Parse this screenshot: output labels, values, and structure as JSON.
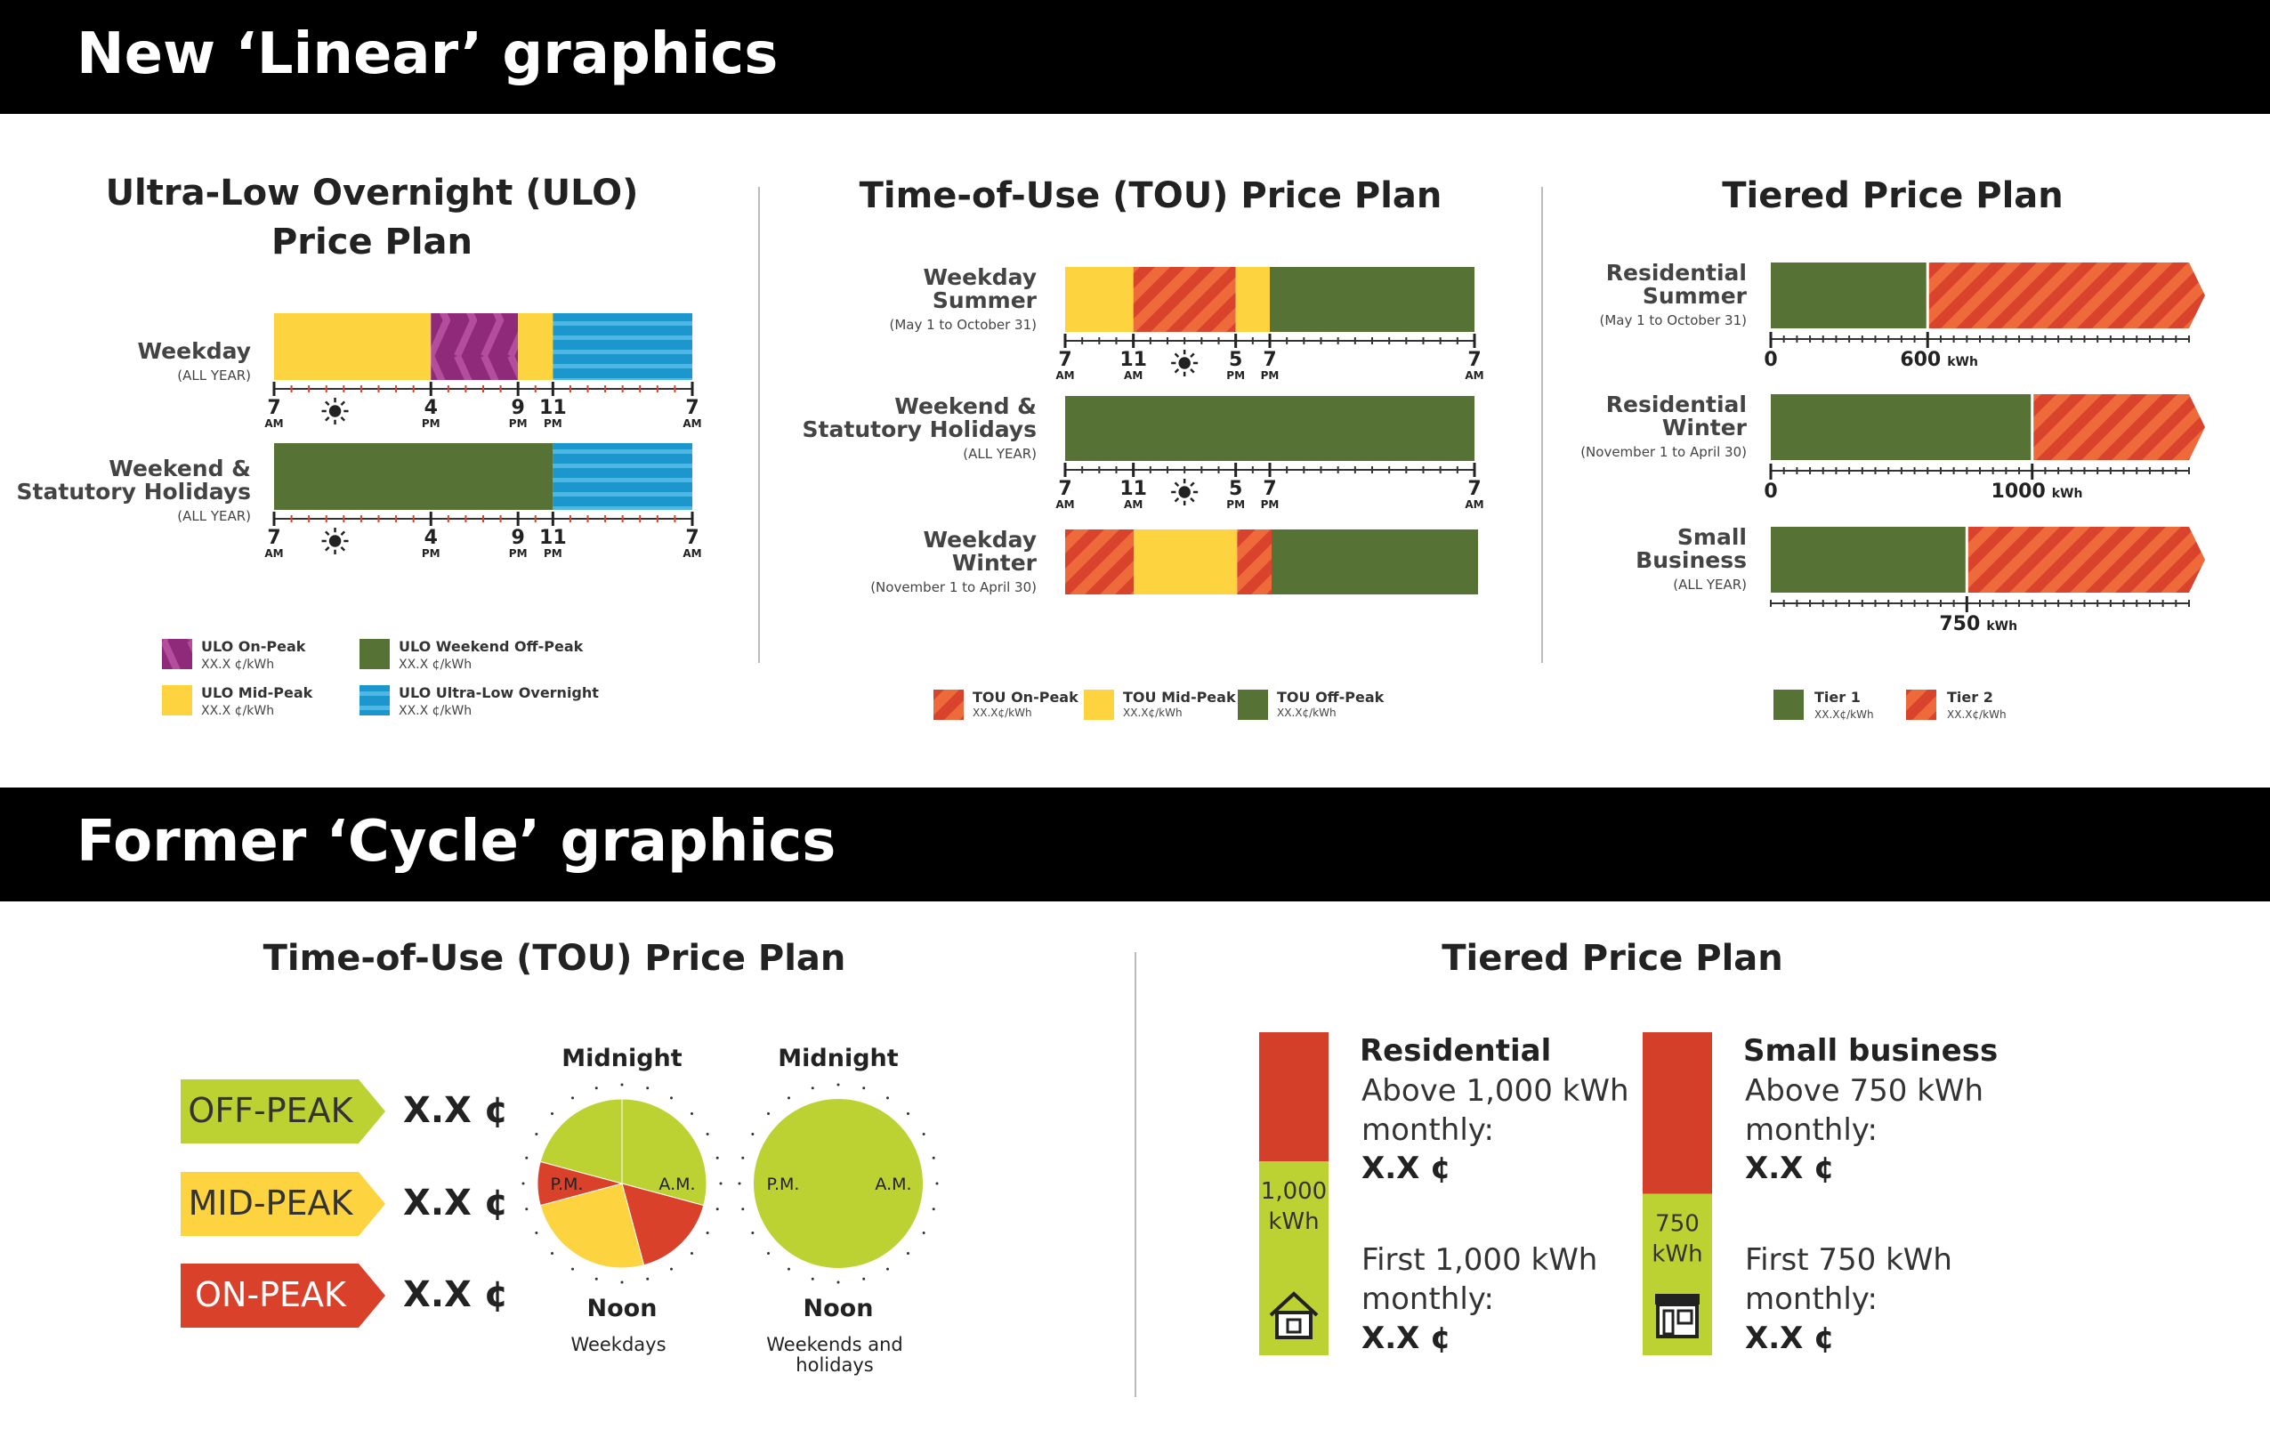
{
  "banners": {
    "top": "New ‘Linear’ graphics",
    "bottom": "Former ‘Cycle’ graphics"
  },
  "colors": {
    "purple": "#8E2A79",
    "yellow": "#FDD440",
    "blue": "#1C97CE",
    "green": "#567234",
    "red": "#D9432C",
    "lime": "#BCD232",
    "label_red": "#D9412A",
    "black": "#000000",
    "divider": "#BBBBBB"
  },
  "ulo": {
    "title_line1": "Ultra-Low Overnight (ULO)",
    "title_line2": "Price Plan",
    "rows": [
      {
        "label_lines": [
          "Weekday"
        ],
        "sub": "(ALL YEAR)",
        "segments": [
          {
            "from": 7,
            "to": 16,
            "period": "mid"
          },
          {
            "from": 16,
            "to": 21,
            "period": "on"
          },
          {
            "from": 21,
            "to": 23,
            "period": "mid"
          },
          {
            "from": 23,
            "to": 31,
            "period": "ulo"
          }
        ]
      },
      {
        "label_lines": [
          "Weekend &",
          "Statutory Holidays"
        ],
        "sub": "(ALL YEAR)",
        "segments": [
          {
            "from": 7,
            "to": 23,
            "period": "weekend"
          },
          {
            "from": 23,
            "to": 31,
            "period": "ulo"
          }
        ]
      }
    ],
    "ticks": [
      {
        "hour": 7,
        "num": "7",
        "ampm": "AM"
      },
      {
        "hour": 16,
        "num": "4",
        "ampm": "PM"
      },
      {
        "hour": 21,
        "num": "9",
        "ampm": "PM"
      },
      {
        "hour": 23,
        "num": "11",
        "ampm": "PM"
      },
      {
        "hour": 31,
        "num": "7",
        "ampm": "AM"
      }
    ],
    "legend": [
      {
        "period": "on",
        "label": "ULO On-Peak",
        "price": "XX.X ¢/kWh"
      },
      {
        "period": "weekend",
        "label": "ULO Weekend Off-Peak",
        "price": "XX.X ¢/kWh"
      },
      {
        "period": "mid",
        "label": "ULO Mid-Peak",
        "price": "XX.X ¢/kWh"
      },
      {
        "period": "ulo",
        "label": "ULO Ultra-Low Overnight",
        "price": "XX.X ¢/kWh"
      }
    ]
  },
  "tou": {
    "title": "Time-of-Use (TOU) Price Plan",
    "rows": [
      {
        "label_lines": [
          "Weekday",
          "Summer"
        ],
        "sub": "(May 1 to October 31)",
        "segments": [
          {
            "from": 7,
            "to": 11,
            "period": "mid"
          },
          {
            "from": 11,
            "to": 17,
            "period": "on"
          },
          {
            "from": 17,
            "to": 19,
            "period": "mid"
          },
          {
            "from": 19,
            "to": 31,
            "period": "off"
          }
        ]
      },
      {
        "label_lines": [
          "Weekend &",
          "Statutory Holidays"
        ],
        "sub": "(ALL YEAR)",
        "segments": [
          {
            "from": 7,
            "to": 31,
            "period": "off"
          }
        ]
      },
      {
        "label_lines": [
          "Weekday",
          "Winter"
        ],
        "sub": "(November 1 to April 30)",
        "segments": [
          {
            "from": 7,
            "to": 11,
            "period": "on"
          },
          {
            "from": 11,
            "to": 17,
            "period": "mid"
          },
          {
            "from": 17,
            "to": 19,
            "period": "on"
          },
          {
            "from": 19,
            "to": 31,
            "period": "off"
          }
        ]
      }
    ],
    "ticks": [
      {
        "hour": 7,
        "num": "7",
        "ampm": "AM"
      },
      {
        "hour": 11,
        "num": "11",
        "ampm": "AM"
      },
      {
        "hour": 17,
        "num": "5",
        "ampm": "PM"
      },
      {
        "hour": 19,
        "num": "7",
        "ampm": "PM"
      },
      {
        "hour": 31,
        "num": "7",
        "ampm": "AM"
      }
    ],
    "legend": [
      {
        "period": "on",
        "label": "TOU On-Peak",
        "price": "XX.X¢/kWh"
      },
      {
        "period": "mid",
        "label": "TOU Mid-Peak",
        "price": "XX.X¢/kWh"
      },
      {
        "period": "off",
        "label": "TOU Off-Peak",
        "price": "XX.X¢/kWh"
      }
    ]
  },
  "tiered": {
    "title": "Tiered Price Plan",
    "axis_max_kwh": 1600,
    "rows": [
      {
        "label_lines": [
          "Residential",
          "Summer"
        ],
        "sub": "(May 1 to October 31)",
        "threshold": 600,
        "threshold_label": "600",
        "unit": "kWh",
        "zero": "0"
      },
      {
        "label_lines": [
          "Residential",
          "Winter"
        ],
        "sub": "(November 1 to April 30)",
        "threshold": 1000,
        "threshold_label": "1000",
        "unit": "kWh",
        "zero": "0"
      },
      {
        "label_lines": [
          "Small",
          "Business"
        ],
        "sub": "(ALL YEAR)",
        "threshold": 750,
        "threshold_label": "750",
        "unit": "kWh",
        "zero": ""
      }
    ],
    "legend": [
      {
        "tier": 1,
        "label": "Tier 1",
        "price": "XX.X¢/kWh"
      },
      {
        "tier": 2,
        "label": "Tier 2",
        "price": "XX.X¢/kWh"
      }
    ]
  },
  "cycle_tou": {
    "title": "Time-of-Use (TOU) Price Plan",
    "labels": [
      {
        "text": "OFF-PEAK",
        "price": "X.X ¢",
        "period": "off"
      },
      {
        "text": "MID-PEAK",
        "price": "X.X ¢",
        "period": "mid"
      },
      {
        "text": "ON-PEAK",
        "price": "X.X ¢",
        "period": "on"
      }
    ],
    "dials": [
      {
        "top": "Midnight",
        "bottom": "Noon",
        "caption_lines": [
          "Weekdays"
        ],
        "pm": "P.M.",
        "am": "A.M.",
        "slices": [
          {
            "from": 0,
            "to": 7,
            "period": "off"
          },
          {
            "from": 7,
            "to": 11,
            "period": "on"
          },
          {
            "from": 11,
            "to": 17,
            "period": "mid"
          },
          {
            "from": 17,
            "to": 19,
            "period": "on"
          },
          {
            "from": 19,
            "to": 24,
            "period": "off"
          }
        ]
      },
      {
        "top": "Midnight",
        "bottom": "Noon",
        "caption_lines": [
          "Weekends and",
          "holidays"
        ],
        "pm": "P.M.",
        "am": "A.M.",
        "slices": [
          {
            "from": 0,
            "to": 24,
            "period": "off"
          }
        ]
      }
    ]
  },
  "cycle_tiered": {
    "title": "Tiered Price Plan",
    "columns": [
      {
        "heading": "Residential",
        "upper_lines": [
          "Above 1,000 kWh",
          "monthly:"
        ],
        "upper_price": "X.X  ¢",
        "threshold_lines": [
          "1,000",
          "kWh"
        ],
        "lower_lines": [
          "First 1,000 kWh",
          "monthly:"
        ],
        "lower_price": "X.X ¢",
        "icon": "house-icon",
        "red_fraction": 0.4
      },
      {
        "heading": "Small business",
        "upper_lines": [
          "Above 750 kWh",
          "monthly:"
        ],
        "upper_price": "X.X  ¢",
        "threshold_lines": [
          "750",
          "kWh"
        ],
        "lower_lines": [
          "First 750 kWh",
          "monthly:"
        ],
        "lower_price": "X.X ¢",
        "icon": "storefront-icon",
        "red_fraction": 0.5
      }
    ]
  }
}
